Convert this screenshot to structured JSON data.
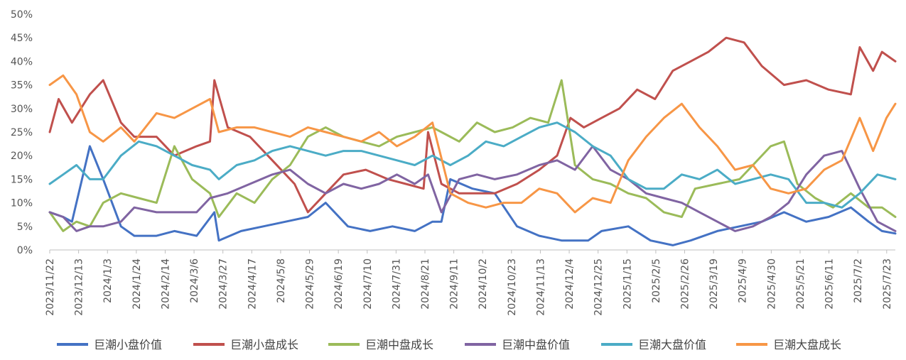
{
  "chart_data": {
    "type": "line",
    "ylim": [
      0,
      50
    ],
    "yticks": [
      "0%",
      "5%",
      "10%",
      "15%",
      "20%",
      "25%",
      "30%",
      "35%",
      "40%",
      "45%",
      "50%"
    ],
    "xticks": [
      "2023/11/22",
      "2023/12/13",
      "2024/1/3",
      "2024/1/24",
      "2024/2/14",
      "2024/3/6",
      "2024/3/27",
      "2024/4/17",
      "2024/5/8",
      "2024/5/29",
      "2024/6/19",
      "2024/7/10",
      "2024/7/31",
      "2024/8/21",
      "2024/9/11",
      "2024/10/2",
      "2024/10/23",
      "2024/11/13",
      "2024/12/4",
      "2024/12/25",
      "2025/1/15",
      "2025/2/5",
      "2025/2/26",
      "2025/3/19",
      "2025/4/9",
      "2025/4/30",
      "2025/5/21",
      "2025/6/11",
      "2025/7/2",
      "2025/7/23"
    ],
    "grid": false,
    "legend": "bottom",
    "series": [
      {
        "name": "巨潮小盘价值",
        "color": "#4472C4",
        "values": [
          [
            0,
            8
          ],
          [
            3,
            7
          ],
          [
            5,
            6
          ],
          [
            9,
            22
          ],
          [
            12,
            15
          ],
          [
            16,
            5
          ],
          [
            19,
            3
          ],
          [
            24,
            3
          ],
          [
            28,
            4
          ],
          [
            33,
            3
          ],
          [
            37,
            8
          ],
          [
            38,
            2
          ],
          [
            43,
            4
          ],
          [
            48,
            5
          ],
          [
            53,
            6
          ],
          [
            58,
            7
          ],
          [
            62,
            10
          ],
          [
            67,
            5
          ],
          [
            72,
            4
          ],
          [
            77,
            5
          ],
          [
            82,
            4
          ],
          [
            86,
            6
          ],
          [
            88,
            6
          ],
          [
            90,
            15
          ],
          [
            95,
            13
          ],
          [
            100,
            12
          ],
          [
            105,
            5
          ],
          [
            110,
            3
          ],
          [
            115,
            2
          ],
          [
            121,
            2
          ],
          [
            124,
            4
          ],
          [
            130,
            5
          ],
          [
            135,
            2
          ],
          [
            140,
            1
          ],
          [
            144,
            2
          ],
          [
            150,
            4
          ],
          [
            155,
            5
          ],
          [
            160,
            6
          ],
          [
            165,
            8
          ],
          [
            170,
            6
          ],
          [
            175,
            7
          ],
          [
            180,
            9
          ],
          [
            184,
            6
          ],
          [
            187,
            4
          ],
          [
            190,
            3.5
          ]
        ]
      },
      {
        "name": "巨潮小盘成长",
        "color": "#C0504D",
        "values": [
          [
            0,
            25
          ],
          [
            2,
            32
          ],
          [
            5,
            27
          ],
          [
            9,
            33
          ],
          [
            12,
            36
          ],
          [
            16,
            27
          ],
          [
            19,
            24
          ],
          [
            24,
            24
          ],
          [
            28,
            20
          ],
          [
            33,
            22
          ],
          [
            36,
            23
          ],
          [
            37,
            36
          ],
          [
            40,
            26
          ],
          [
            45,
            24
          ],
          [
            50,
            19
          ],
          [
            55,
            14
          ],
          [
            58,
            8
          ],
          [
            62,
            12
          ],
          [
            66,
            16
          ],
          [
            71,
            17
          ],
          [
            76,
            15
          ],
          [
            80,
            14
          ],
          [
            84,
            13
          ],
          [
            85,
            25
          ],
          [
            88,
            14
          ],
          [
            92,
            12
          ],
          [
            96,
            12
          ],
          [
            100,
            12
          ],
          [
            105,
            14
          ],
          [
            110,
            17
          ],
          [
            114,
            20
          ],
          [
            117,
            28
          ],
          [
            120,
            26
          ],
          [
            124,
            28
          ],
          [
            128,
            30
          ],
          [
            132,
            34
          ],
          [
            136,
            32
          ],
          [
            140,
            38
          ],
          [
            144,
            40
          ],
          [
            148,
            42
          ],
          [
            152,
            45
          ],
          [
            156,
            44
          ],
          [
            160,
            39
          ],
          [
            165,
            35
          ],
          [
            170,
            36
          ],
          [
            175,
            34
          ],
          [
            180,
            33
          ],
          [
            182,
            43
          ],
          [
            185,
            38
          ],
          [
            187,
            42
          ],
          [
            190,
            40
          ]
        ]
      },
      {
        "name": "巨潮中盘成长",
        "color": "#9BBB59",
        "values": [
          [
            0,
            8
          ],
          [
            3,
            4
          ],
          [
            6,
            6
          ],
          [
            9,
            5
          ],
          [
            12,
            10
          ],
          [
            16,
            12
          ],
          [
            20,
            11
          ],
          [
            24,
            10
          ],
          [
            28,
            22
          ],
          [
            32,
            15
          ],
          [
            36,
            12
          ],
          [
            38,
            7
          ],
          [
            42,
            12
          ],
          [
            46,
            10
          ],
          [
            50,
            15
          ],
          [
            54,
            18
          ],
          [
            58,
            24
          ],
          [
            62,
            26
          ],
          [
            66,
            24
          ],
          [
            70,
            23
          ],
          [
            74,
            22
          ],
          [
            78,
            24
          ],
          [
            82,
            25
          ],
          [
            86,
            26
          ],
          [
            88,
            25
          ],
          [
            92,
            23
          ],
          [
            96,
            27
          ],
          [
            100,
            25
          ],
          [
            104,
            26
          ],
          [
            108,
            28
          ],
          [
            112,
            27
          ],
          [
            115,
            36
          ],
          [
            118,
            18
          ],
          [
            122,
            15
          ],
          [
            126,
            14
          ],
          [
            130,
            12
          ],
          [
            134,
            11
          ],
          [
            138,
            8
          ],
          [
            142,
            7
          ],
          [
            145,
            13
          ],
          [
            150,
            14
          ],
          [
            155,
            15
          ],
          [
            158,
            18
          ],
          [
            162,
            22
          ],
          [
            165,
            23
          ],
          [
            168,
            14
          ],
          [
            172,
            11
          ],
          [
            176,
            9
          ],
          [
            180,
            12
          ],
          [
            184,
            9
          ],
          [
            187,
            9
          ],
          [
            190,
            7
          ]
        ]
      },
      {
        "name": "巨潮中盘价值",
        "color": "#8064A2",
        "values": [
          [
            0,
            8
          ],
          [
            3,
            7
          ],
          [
            6,
            4
          ],
          [
            9,
            5
          ],
          [
            12,
            5
          ],
          [
            16,
            6
          ],
          [
            19,
            9
          ],
          [
            24,
            8
          ],
          [
            28,
            8
          ],
          [
            33,
            8
          ],
          [
            36,
            11
          ],
          [
            40,
            12
          ],
          [
            45,
            14
          ],
          [
            50,
            16
          ],
          [
            54,
            17
          ],
          [
            58,
            14
          ],
          [
            62,
            12
          ],
          [
            66,
            14
          ],
          [
            70,
            13
          ],
          [
            74,
            14
          ],
          [
            78,
            16
          ],
          [
            82,
            14
          ],
          [
            85,
            16
          ],
          [
            88,
            8
          ],
          [
            92,
            15
          ],
          [
            96,
            16
          ],
          [
            100,
            15
          ],
          [
            105,
            16
          ],
          [
            110,
            18
          ],
          [
            114,
            19
          ],
          [
            118,
            17
          ],
          [
            122,
            22
          ],
          [
            126,
            17
          ],
          [
            130,
            15
          ],
          [
            134,
            12
          ],
          [
            138,
            11
          ],
          [
            142,
            10
          ],
          [
            146,
            8
          ],
          [
            150,
            6
          ],
          [
            154,
            4
          ],
          [
            158,
            5
          ],
          [
            162,
            7
          ],
          [
            166,
            10
          ],
          [
            170,
            16
          ],
          [
            174,
            20
          ],
          [
            178,
            21
          ],
          [
            182,
            13
          ],
          [
            186,
            6
          ],
          [
            190,
            4
          ]
        ]
      },
      {
        "name": "巨潮大盘价值",
        "color": "#4BACC6",
        "values": [
          [
            0,
            14
          ],
          [
            3,
            16
          ],
          [
            6,
            18
          ],
          [
            9,
            15
          ],
          [
            12,
            15
          ],
          [
            16,
            20
          ],
          [
            20,
            23
          ],
          [
            24,
            22
          ],
          [
            28,
            20
          ],
          [
            32,
            18
          ],
          [
            36,
            17
          ],
          [
            38,
            15
          ],
          [
            42,
            18
          ],
          [
            46,
            19
          ],
          [
            50,
            21
          ],
          [
            54,
            22
          ],
          [
            58,
            21
          ],
          [
            62,
            20
          ],
          [
            66,
            21
          ],
          [
            70,
            21
          ],
          [
            74,
            20
          ],
          [
            78,
            19
          ],
          [
            82,
            18
          ],
          [
            86,
            20
          ],
          [
            90,
            18
          ],
          [
            94,
            20
          ],
          [
            98,
            23
          ],
          [
            102,
            22
          ],
          [
            106,
            24
          ],
          [
            110,
            26
          ],
          [
            114,
            27
          ],
          [
            118,
            25
          ],
          [
            122,
            22
          ],
          [
            126,
            20
          ],
          [
            130,
            15
          ],
          [
            134,
            13
          ],
          [
            138,
            13
          ],
          [
            142,
            16
          ],
          [
            146,
            15
          ],
          [
            150,
            17
          ],
          [
            154,
            14
          ],
          [
            158,
            15
          ],
          [
            162,
            16
          ],
          [
            166,
            15
          ],
          [
            170,
            10
          ],
          [
            174,
            10
          ],
          [
            178,
            9
          ],
          [
            182,
            12
          ],
          [
            186,
            16
          ],
          [
            190,
            15
          ]
        ]
      },
      {
        "name": "巨潮大盘成长",
        "color": "#F79646",
        "values": [
          [
            0,
            35
          ],
          [
            3,
            37
          ],
          [
            6,
            33
          ],
          [
            9,
            25
          ],
          [
            12,
            23
          ],
          [
            16,
            26
          ],
          [
            19,
            23
          ],
          [
            24,
            29
          ],
          [
            28,
            28
          ],
          [
            32,
            30
          ],
          [
            36,
            32
          ],
          [
            38,
            25
          ],
          [
            42,
            26
          ],
          [
            46,
            26
          ],
          [
            50,
            25
          ],
          [
            54,
            24
          ],
          [
            58,
            26
          ],
          [
            62,
            25
          ],
          [
            66,
            24
          ],
          [
            70,
            23
          ],
          [
            74,
            25
          ],
          [
            78,
            22
          ],
          [
            82,
            24
          ],
          [
            86,
            27
          ],
          [
            90,
            12
          ],
          [
            94,
            10
          ],
          [
            98,
            9
          ],
          [
            102,
            10
          ],
          [
            106,
            10
          ],
          [
            110,
            13
          ],
          [
            114,
            12
          ],
          [
            118,
            8
          ],
          [
            122,
            11
          ],
          [
            126,
            10
          ],
          [
            130,
            19
          ],
          [
            134,
            24
          ],
          [
            138,
            28
          ],
          [
            142,
            31
          ],
          [
            146,
            26
          ],
          [
            150,
            22
          ],
          [
            154,
            17
          ],
          [
            158,
            18
          ],
          [
            162,
            13
          ],
          [
            166,
            12
          ],
          [
            170,
            13
          ],
          [
            174,
            17
          ],
          [
            178,
            19
          ],
          [
            182,
            28
          ],
          [
            185,
            21
          ],
          [
            188,
            28
          ],
          [
            190,
            31
          ]
        ]
      }
    ]
  }
}
